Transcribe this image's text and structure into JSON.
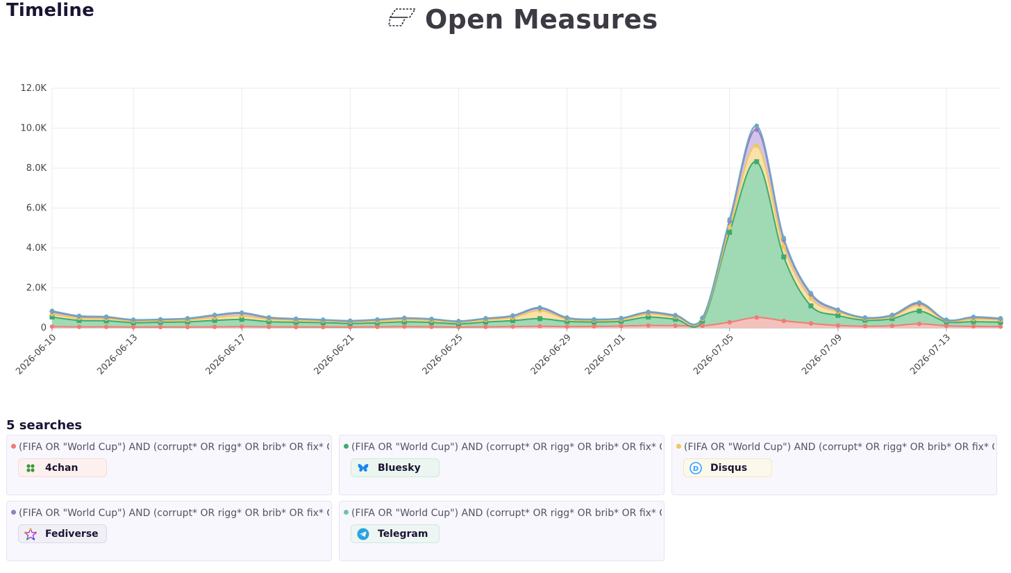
{
  "header": {
    "page_title": "Timeline",
    "brand_name": "Open Measures"
  },
  "chart_data": {
    "type": "area",
    "stacked": true,
    "x": [
      "2026-06-10",
      "2026-06-11",
      "2026-06-12",
      "2026-06-13",
      "2026-06-14",
      "2026-06-15",
      "2026-06-16",
      "2026-06-17",
      "2026-06-18",
      "2026-06-19",
      "2026-06-20",
      "2026-06-21",
      "2026-06-22",
      "2026-06-23",
      "2026-06-24",
      "2026-06-25",
      "2026-06-26",
      "2026-06-27",
      "2026-06-28",
      "2026-06-29",
      "2026-06-30",
      "2026-07-01",
      "2026-07-02",
      "2026-07-03",
      "2026-07-04",
      "2026-07-05",
      "2026-07-06",
      "2026-07-07",
      "2026-07-08",
      "2026-07-09",
      "2026-07-10",
      "2026-07-11",
      "2026-07-12",
      "2026-07-13",
      "2026-07-14",
      "2026-07-15"
    ],
    "x_tick_labels": [
      "2026-06-10",
      "2026-06-13",
      "2026-06-17",
      "2026-06-21",
      "2026-06-25",
      "2026-06-29",
      "2026-07-01",
      "2026-07-05",
      "2026-07-09",
      "2026-07-13"
    ],
    "ylim": [
      0,
      12000
    ],
    "y_tick_labels": [
      "0",
      "2.0K",
      "4.0K",
      "6.0K",
      "8.0K",
      "10.0K",
      "12.0K"
    ],
    "grid": true,
    "series": [
      {
        "color": "#f07c74",
        "fill": "#f9c0ba",
        "values": [
          60,
          50,
          50,
          40,
          40,
          40,
          50,
          60,
          50,
          40,
          40,
          40,
          50,
          60,
          50,
          40,
          50,
          60,
          80,
          60,
          70,
          90,
          120,
          110,
          100,
          280,
          520,
          350,
          220,
          120,
          80,
          100,
          200,
          100,
          70,
          60
        ]
      },
      {
        "color": "#3daa6e",
        "fill": "#9ad9b4",
        "values": [
          480,
          320,
          300,
          220,
          240,
          260,
          320,
          360,
          260,
          240,
          220,
          180,
          200,
          240,
          220,
          160,
          240,
          300,
          380,
          260,
          220,
          240,
          420,
          320,
          240,
          4500,
          7800,
          3200,
          880,
          500,
          300,
          360,
          640,
          200,
          240,
          220
        ]
      },
      {
        "color": "#f2c65b",
        "fill": "#fbe3a7",
        "values": [
          150,
          120,
          110,
          80,
          80,
          90,
          150,
          180,
          120,
          100,
          90,
          80,
          90,
          110,
          100,
          80,
          110,
          150,
          400,
          110,
          80,
          90,
          150,
          120,
          100,
          250,
          800,
          500,
          380,
          180,
          80,
          110,
          280,
          60,
          130,
          110
        ]
      },
      {
        "color": "#9a7bc4",
        "fill": "#d2c2e8",
        "values": [
          120,
          80,
          70,
          50,
          50,
          70,
          100,
          130,
          70,
          60,
          40,
          40,
          60,
          70,
          60,
          40,
          60,
          80,
          120,
          60,
          40,
          50,
          80,
          60,
          50,
          300,
          800,
          350,
          200,
          80,
          40,
          50,
          100,
          30,
          80,
          60
        ]
      },
      {
        "color": "#6fa8c0",
        "fill": "#c4e0ea",
        "values": [
          40,
          30,
          30,
          20,
          20,
          20,
          30,
          30,
          30,
          20,
          20,
          20,
          20,
          20,
          20,
          20,
          20,
          30,
          40,
          30,
          20,
          20,
          30,
          30,
          20,
          100,
          200,
          100,
          60,
          30,
          20,
          30,
          50,
          20,
          30,
          30
        ]
      }
    ]
  },
  "searches": {
    "count_label": "5 searches",
    "items": [
      {
        "query": "(FIFA OR \"World Cup\") AND (corrupt* OR rigg* OR brib* OR fix* O...",
        "source": "4chan",
        "dot_color": "#f07c74",
        "chip_bg": "#fdf1ef",
        "chip_border": "#f7d9d4",
        "icon": "4chan-clover-icon"
      },
      {
        "query": "(FIFA OR \"World Cup\") AND (corrupt* OR rigg* OR brib* OR fix* O...",
        "source": "Bluesky",
        "dot_color": "#3daa6e",
        "chip_bg": "#ecf6f0",
        "chip_border": "#cfe8d9",
        "icon": "bluesky-butterfly-icon"
      },
      {
        "query": "(FIFA OR \"World Cup\") AND (corrupt* OR rigg* OR brib* OR fix* O...",
        "source": "Disqus",
        "dot_color": "#f2c65b",
        "chip_bg": "#fdf8ec",
        "chip_border": "#f3e6c2",
        "icon": "disqus-d-icon"
      },
      {
        "query": "(FIFA OR \"World Cup\") AND (corrupt* OR rigg* OR brib* OR fix* O...",
        "source": "Fediverse",
        "dot_color": "#9a7bc4",
        "chip_bg": "#f1eff6",
        "chip_border": "#ddd7e8",
        "icon": "fediverse-star-icon"
      },
      {
        "query": "(FIFA OR \"World Cup\") AND (corrupt* OR rigg* OR brib* OR fix* O...",
        "source": "Telegram",
        "dot_color": "#6fc2b0",
        "chip_bg": "#edf6f3",
        "chip_border": "#cfe6de",
        "icon": "telegram-plane-icon"
      }
    ]
  }
}
